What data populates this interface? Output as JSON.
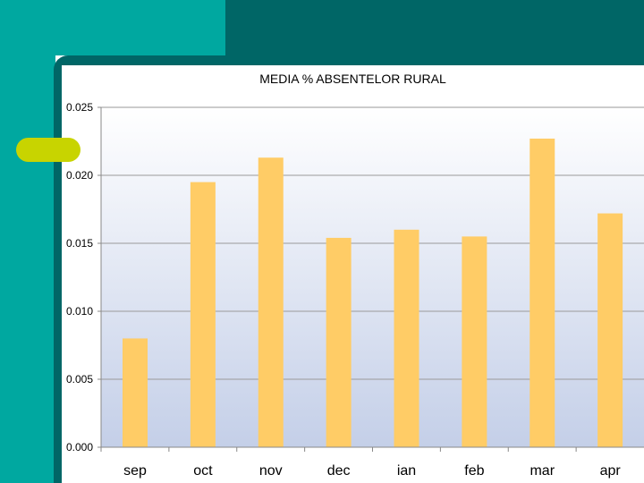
{
  "colors": {
    "teal_light": "#00a8a0",
    "teal_dark": "#006666",
    "accent_pill": "#c8d400",
    "bar_fill": "#ffcc66",
    "plot_gradient_top": "#ffffff",
    "plot_gradient_bottom": "#c4cfe8"
  },
  "chart_data": {
    "type": "bar",
    "title": "MEDIA % ABSENTELOR RURAL",
    "xlabel": "",
    "ylabel": "",
    "categories": [
      "sep",
      "oct",
      "nov",
      "dec",
      "ian",
      "feb",
      "mar",
      "apr"
    ],
    "values": [
      0.008,
      0.0195,
      0.0213,
      0.0154,
      0.016,
      0.0155,
      0.0227,
      0.0172
    ],
    "ylim": [
      0,
      0.025
    ],
    "yticks": [
      "0.025",
      "0.020",
      "0.015",
      "0.010",
      "0.005",
      "0.000"
    ],
    "grid": true,
    "legend": "none"
  }
}
